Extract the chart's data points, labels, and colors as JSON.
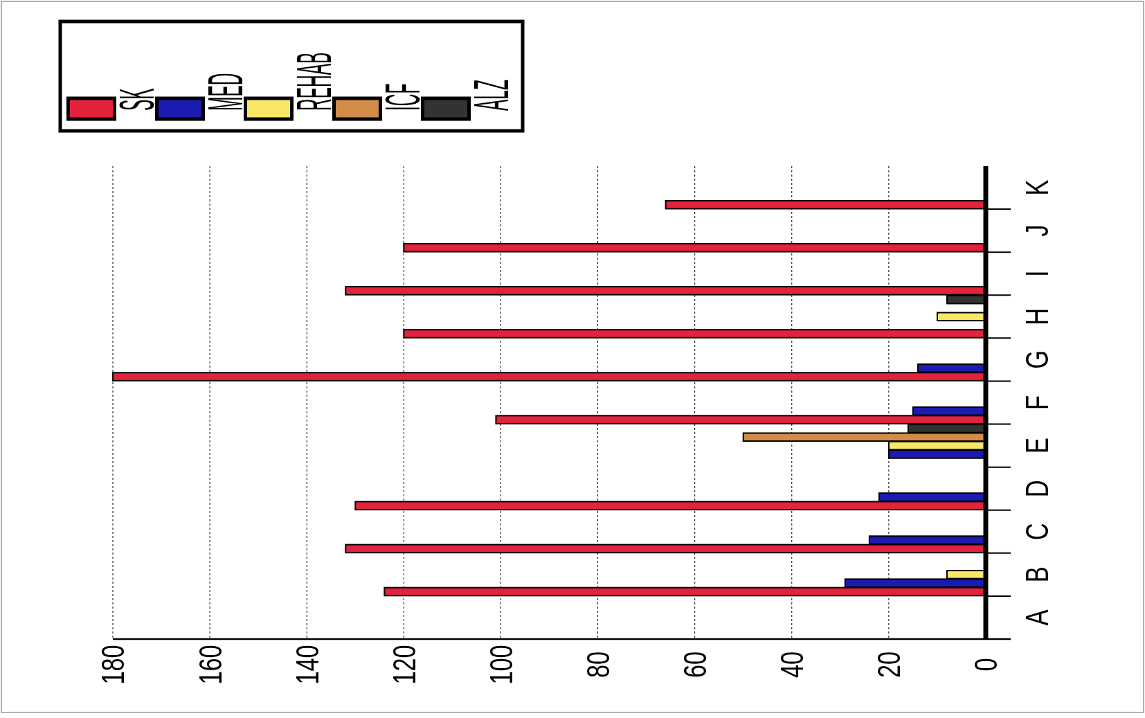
{
  "chart_data": {
    "type": "bar",
    "orientation": "horizontal",
    "categories": [
      "K",
      "J",
      "I",
      "H",
      "G",
      "F",
      "E",
      "D",
      "C",
      "B",
      "A"
    ],
    "series": [
      {
        "name": "SK",
        "color": "#e3223c",
        "values": [
          66,
          120,
          132,
          120,
          180,
          101,
          0,
          130,
          132,
          124,
          0
        ]
      },
      {
        "name": "MED",
        "color": "#1b1bb0",
        "values": [
          0,
          0,
          0,
          0,
          14,
          15,
          20,
          22,
          24,
          29,
          0
        ]
      },
      {
        "name": "REHAB",
        "color": "#f8e866",
        "values": [
          0,
          0,
          0,
          10,
          0,
          0,
          20,
          0,
          0,
          8,
          0
        ]
      },
      {
        "name": "ICF",
        "color": "#d08c48",
        "values": [
          0,
          0,
          0,
          0,
          0,
          0,
          50,
          0,
          0,
          0,
          0
        ]
      },
      {
        "name": "ALZ",
        "color": "#333333",
        "values": [
          0,
          0,
          0,
          8,
          0,
          0,
          16,
          0,
          0,
          0,
          0
        ]
      }
    ],
    "xlim": [
      180,
      0
    ],
    "xticks": [
      0,
      20,
      40,
      60,
      80,
      100,
      120,
      140,
      160,
      180
    ],
    "grid": "x",
    "legend": "top left"
  }
}
